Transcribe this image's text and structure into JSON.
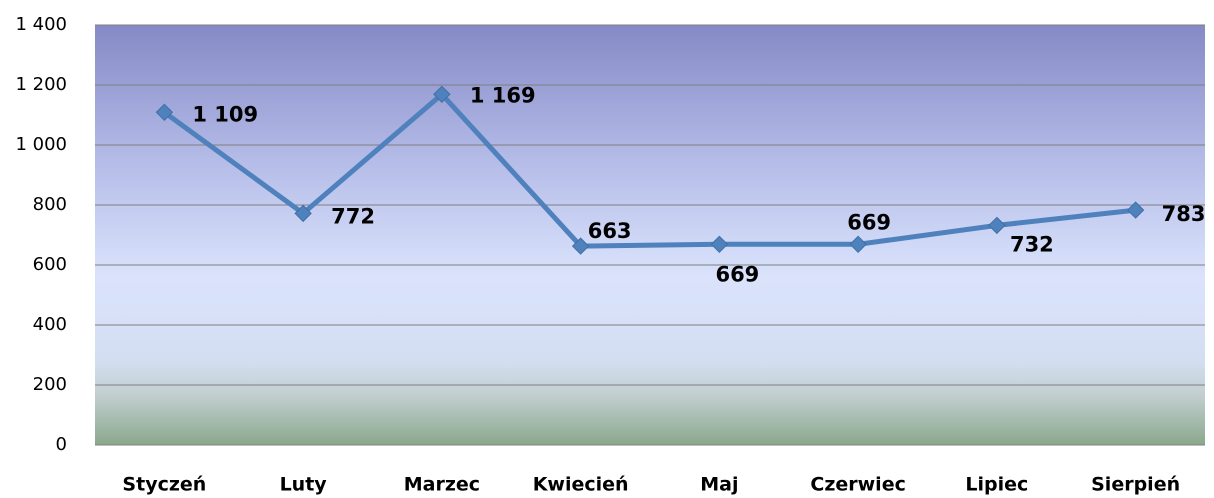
{
  "chart_data": {
    "type": "line",
    "categories": [
      "Styczeń",
      "Luty",
      "Marzec",
      "Kwiecień",
      "Maj",
      "Czerwiec",
      "Lipiec",
      "Sierpień"
    ],
    "series": [
      {
        "color": "#4f81bd",
        "values": [
          1109,
          772,
          1169,
          663,
          669,
          669,
          732,
          783
        ],
        "value_labels": [
          "1 109",
          "772",
          "1 169",
          "663",
          "669",
          "669",
          "732",
          "783"
        ]
      }
    ],
    "ylim": [
      0,
      1400
    ],
    "yticks": [
      0,
      200,
      400,
      600,
      800,
      {
        "value": 1000,
        "label": "1 000"
      },
      {
        "value": 1200,
        "label": "1 200"
      },
      {
        "value": 1400,
        "label": "1 400"
      }
    ],
    "grid": true
  }
}
